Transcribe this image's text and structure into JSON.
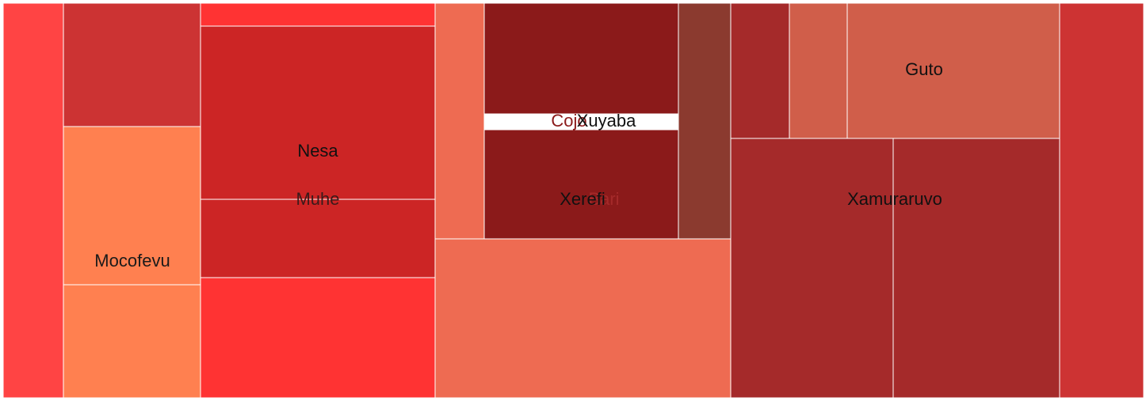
{
  "chart_data": {
    "type": "treemap",
    "title": "",
    "cells": [
      {
        "label": "",
        "color": "#ff4444",
        "label_color": "#1a1a1a"
      },
      {
        "label": "",
        "color": "#cc3333",
        "label_color": "#1a1a1a"
      },
      {
        "label": "Mocofevu",
        "color": "#ff8050",
        "label_color": "#1a1a1a"
      },
      {
        "label": "",
        "color": "#ff8050",
        "label_color": "#1a1a1a"
      },
      {
        "label": "",
        "color": "#ff3333",
        "label_color": "#1a1a1a"
      },
      {
        "label": "Nesa",
        "color": "#cc2525",
        "label_color": "#111111"
      },
      {
        "label": "Muhe",
        "color": "#cc2525",
        "label_color": "#3a1a1a"
      },
      {
        "label": "",
        "color": "#ff3333",
        "label_color": "#1a1a1a"
      },
      {
        "label": "",
        "color": "#ee6b52",
        "label_color": "#1a1a1a"
      },
      {
        "label": "Xuyaba",
        "color": "#8b1a1a",
        "label_color": "#111111"
      },
      {
        "label": "Cojo",
        "color": "#8b1a1a",
        "label_color": "#8b1a1a"
      },
      {
        "label": "Xerefi",
        "color": "#8b1a1a",
        "label_color": "#111111"
      },
      {
        "label": "Bari",
        "color": "#8b1a1a",
        "label_color": "#a52a2a"
      },
      {
        "label": "",
        "color": "#8b3a2f",
        "label_color": "#1a1a1a"
      },
      {
        "label": "",
        "color": "#ee6b52",
        "label_color": "#1a1a1a"
      },
      {
        "label": "",
        "color": "#a52a2a",
        "label_color": "#1a1a1a"
      },
      {
        "label": "",
        "color": "#d05e4a",
        "label_color": "#1a1a1a"
      },
      {
        "label": "Guto",
        "color": "#d05e4a",
        "label_color": "#111111"
      },
      {
        "label": "",
        "color": "#a52a2a",
        "label_color": "#1a1a1a"
      },
      {
        "label": "Xamuraruvo",
        "color": "#a52a2a",
        "label_color": "#111111"
      },
      {
        "label": "",
        "color": "#cd3333",
        "label_color": "#1a1a1a"
      }
    ]
  }
}
